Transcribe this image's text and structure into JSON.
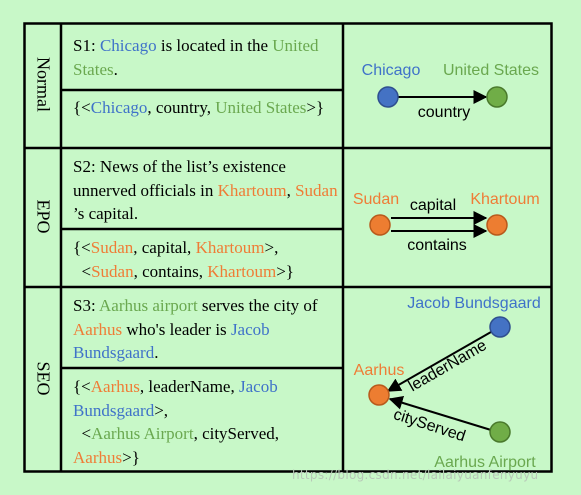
{
  "rows": [
    {
      "label": "Normal",
      "sentence": [
        {
          "t": "S1: ",
          "c": "black"
        },
        {
          "t": "Chicago",
          "c": "blue"
        },
        {
          "t": " is located in the ",
          "c": "black"
        },
        {
          "t": "United States",
          "c": "green"
        },
        {
          "t": ".",
          "c": "black"
        }
      ],
      "triples": [
        {
          "t": "{<",
          "c": "black"
        },
        {
          "t": "Chicago",
          "c": "blue"
        },
        {
          "t": ", country, ",
          "c": "black"
        },
        {
          "t": "United States",
          "c": "green"
        },
        {
          "t": ">}",
          "c": "black"
        }
      ],
      "diagram": {
        "nodes": {
          "head": "Chicago",
          "tail": "United States"
        },
        "relations": [
          "country"
        ]
      }
    },
    {
      "label": "EPO",
      "sentence": [
        {
          "t": "S2: News of the list’s existence unnerved officials in ",
          "c": "black"
        },
        {
          "t": "Khartoum",
          "c": "orange"
        },
        {
          "t": ", ",
          "c": "black"
        },
        {
          "t": "Sudan",
          "c": "orange"
        },
        {
          "t": " ’s capital.",
          "c": "black"
        }
      ],
      "triples_lines": [
        [
          {
            "t": "{<",
            "c": "black"
          },
          {
            "t": "Sudan",
            "c": "orange"
          },
          {
            "t": ", capital, ",
            "c": "black"
          },
          {
            "t": "Khartoum",
            "c": "orange"
          },
          {
            "t": ">,",
            "c": "black"
          }
        ],
        [
          {
            "t": "  <",
            "c": "black"
          },
          {
            "t": "Sudan",
            "c": "orange"
          },
          {
            "t": ", contains, ",
            "c": "black"
          },
          {
            "t": "Khartoum",
            "c": "orange"
          },
          {
            "t": ">}",
            "c": "black"
          }
        ]
      ],
      "diagram": {
        "nodes": {
          "head": "Sudan",
          "tail": "Khartoum"
        },
        "relations": [
          "capital",
          "contains"
        ]
      }
    },
    {
      "label": "SEO",
      "sentence": [
        {
          "t": "S3: ",
          "c": "black"
        },
        {
          "t": "Aarhus airport",
          "c": "green"
        },
        {
          "t": " serves the city of ",
          "c": "black"
        },
        {
          "t": "Aarhus",
          "c": "orange"
        },
        {
          "t": " who's leader is ",
          "c": "black"
        },
        {
          "t": "Jacob Bundsgaard",
          "c": "blue"
        },
        {
          "t": ".",
          "c": "black"
        }
      ],
      "triples_lines": [
        [
          {
            "t": "{<",
            "c": "black"
          },
          {
            "t": "Aarhus",
            "c": "orange"
          },
          {
            "t": ", leaderName, ",
            "c": "black"
          },
          {
            "t": "Jacob Bundsgaard",
            "c": "blue"
          },
          {
            "t": ">,",
            "c": "black"
          }
        ],
        [
          {
            "t": "  <",
            "c": "black"
          },
          {
            "t": "Aarhus Airport",
            "c": "green"
          },
          {
            "t": ", cityServed, ",
            "c": "black"
          },
          {
            "t": "Aarhus",
            "c": "orange"
          },
          {
            "t": ">}",
            "c": "black"
          }
        ]
      ],
      "diagram": {
        "nodes": {
          "top": "Jacob Bundsgaard",
          "left": "Aarhus",
          "bottom": "Aarhus Airport"
        },
        "relations": [
          "leaderName",
          "cityServed"
        ]
      }
    }
  ],
  "colors": {
    "blue": "#3f72c9",
    "green": "#6aa84f",
    "orange": "#ef7c36",
    "background": "#c8f8c8"
  },
  "watermark": "https://blog.csdn.net/lailaiyuanfenyuyu"
}
